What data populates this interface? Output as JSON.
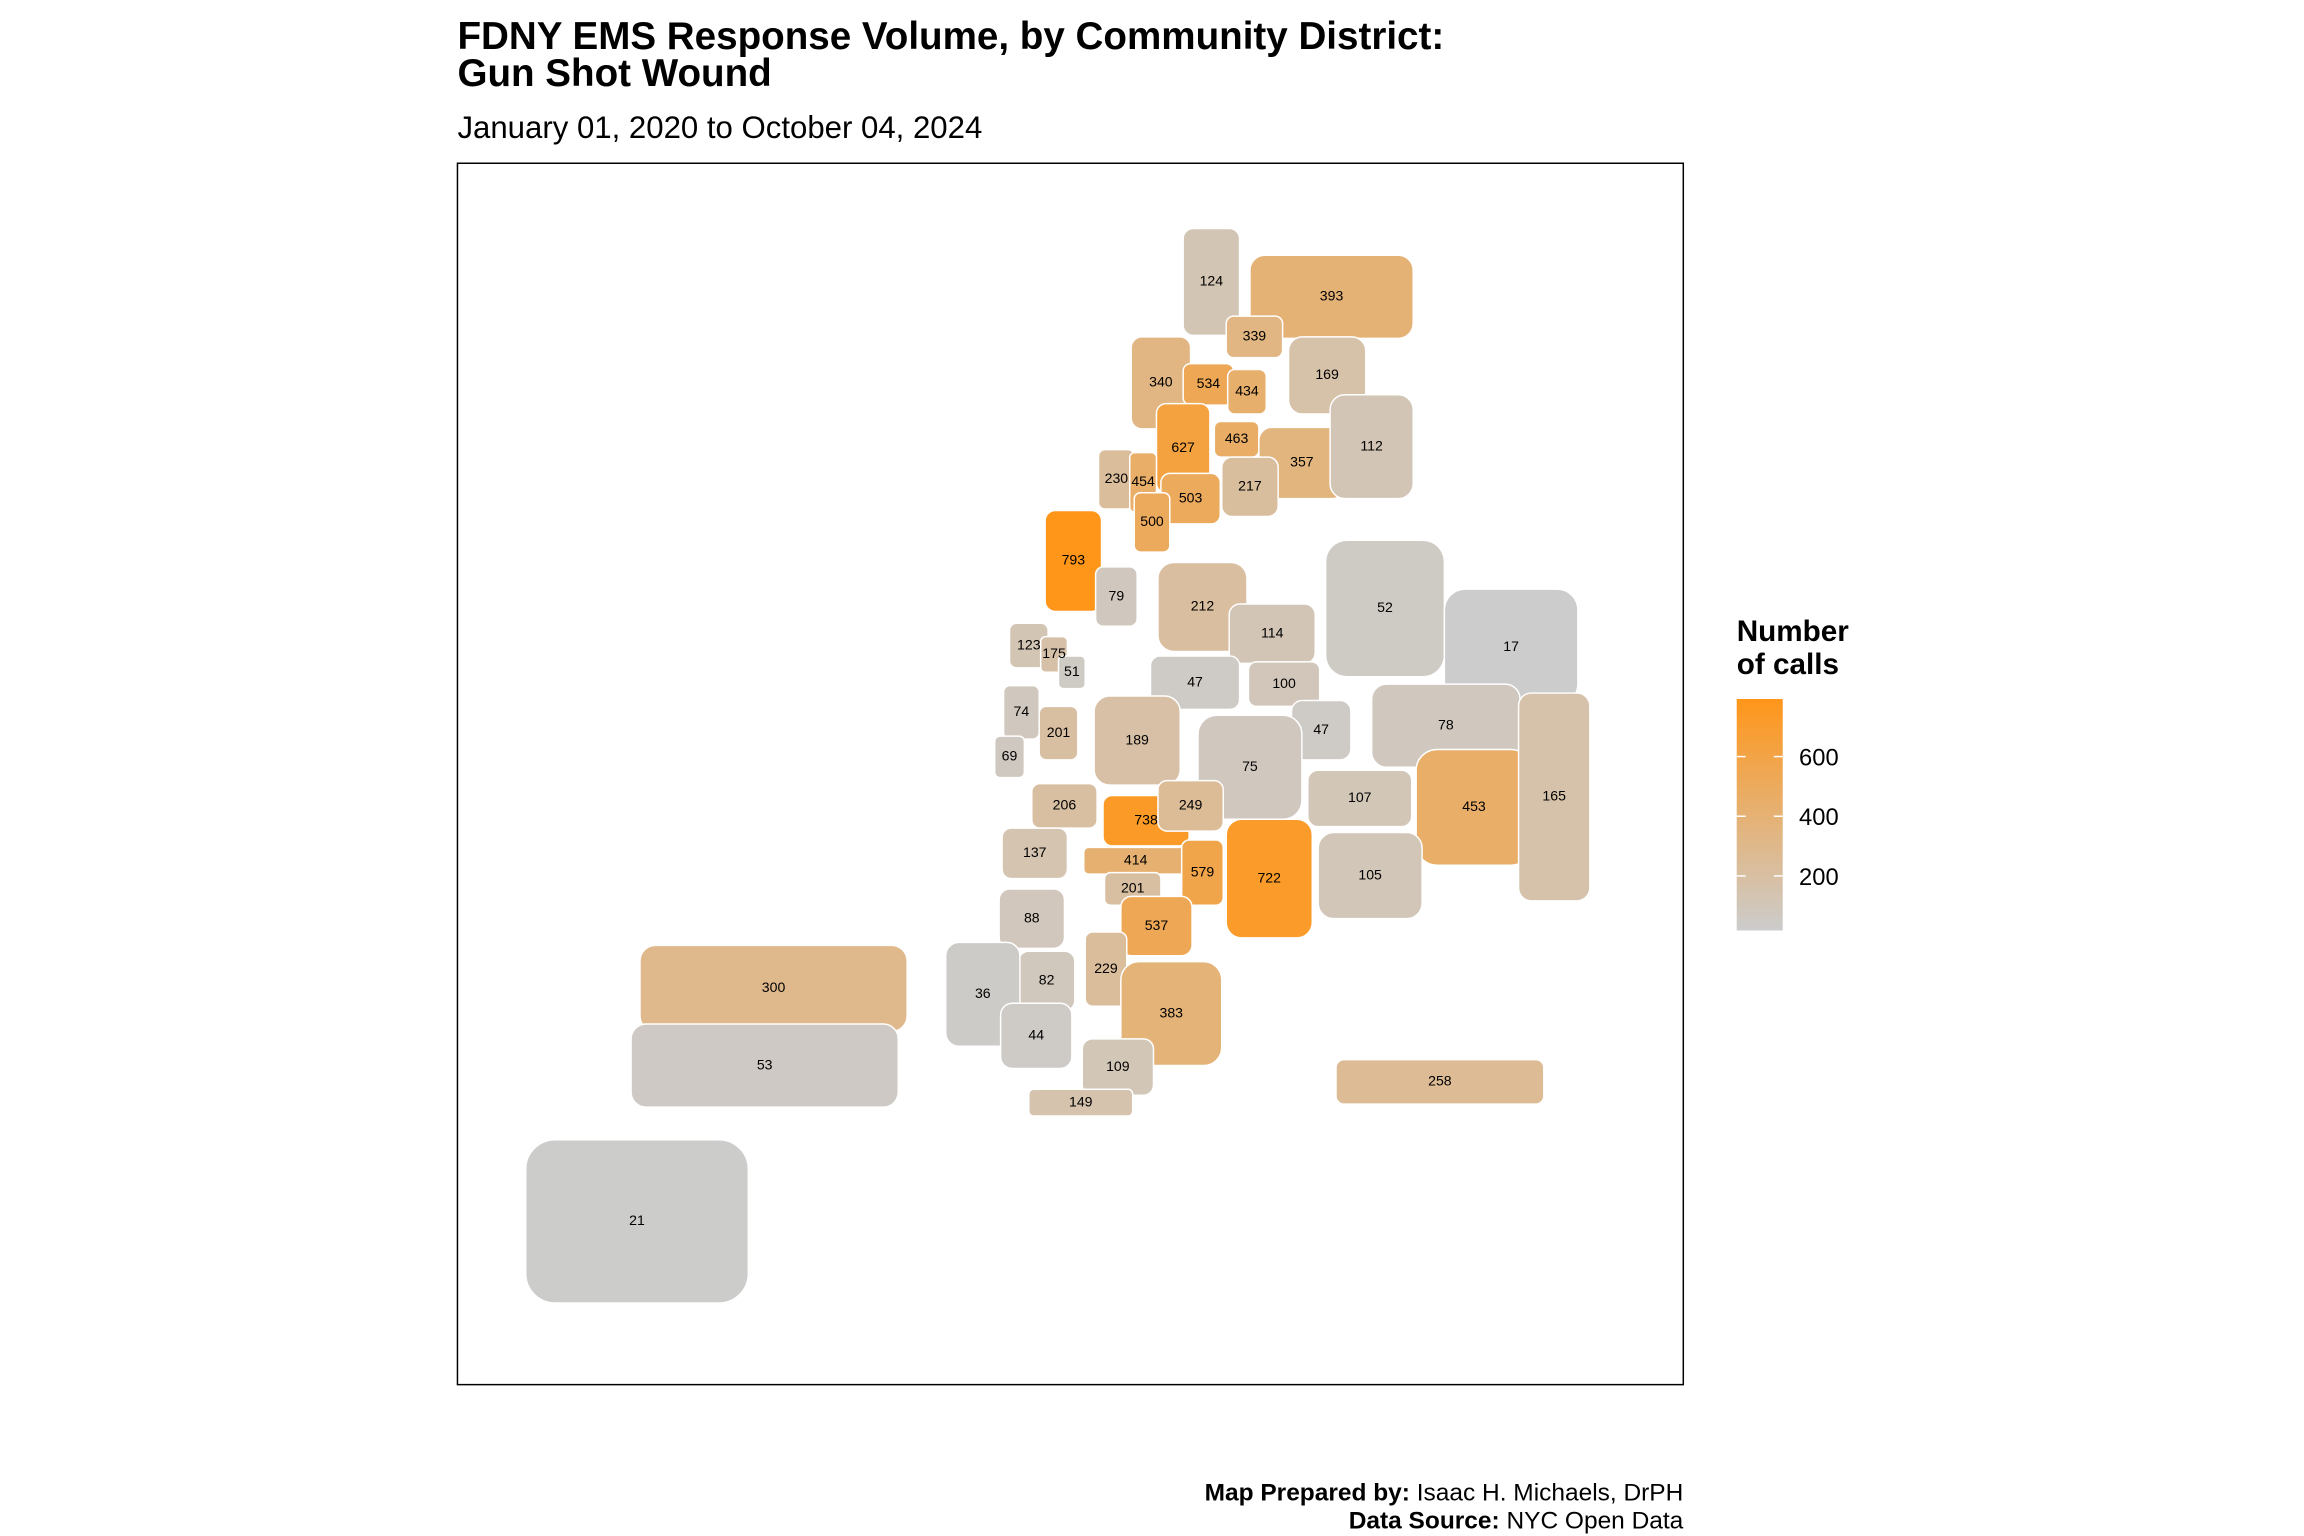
{
  "chart_data": {
    "type": "choropleth",
    "title": [
      "FDNY EMS Response Volume, by Community District:",
      "Gun Shot Wound"
    ],
    "subtitle": "January 01, 2020 to October 04, 2024",
    "legend_title": [
      "Number",
      "of calls"
    ],
    "legend_ticks": [
      200,
      400,
      600
    ],
    "low_color": "#cccccc",
    "high_color": "#ff961a",
    "values": [
      124,
      393,
      339,
      340,
      534,
      434,
      169,
      627,
      463,
      357,
      112,
      230,
      454,
      503,
      217,
      500,
      793,
      79,
      123,
      175,
      51,
      74,
      201,
      69,
      212,
      114,
      52,
      17,
      47,
      100,
      47,
      75,
      78,
      107,
      453,
      165,
      105,
      258,
      189,
      206,
      738,
      249,
      137,
      414,
      579,
      722,
      201,
      88,
      537,
      82,
      229,
      36,
      383,
      44,
      109,
      149,
      300,
      53,
      21
    ],
    "caption": [
      {
        "label": "Map Prepared by:",
        "text": "Isaac H. Michaels, DrPH"
      },
      {
        "label": "Data Source:",
        "text": "NYC Open Data"
      }
    ]
  }
}
